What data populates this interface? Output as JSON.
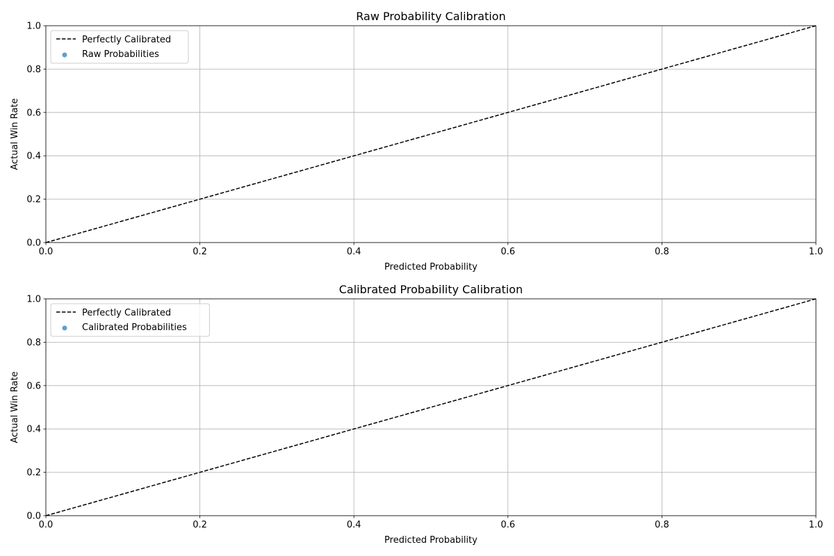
{
  "chart_data": [
    {
      "type": "line",
      "title": "Raw Probability Calibration",
      "xlabel": "Predicted Probability",
      "ylabel": "Actual Win Rate",
      "xlim": [
        0,
        1
      ],
      "ylim": [
        0,
        1
      ],
      "grid": true,
      "xticks": [
        "0.0",
        "0.2",
        "0.4",
        "0.6",
        "0.8",
        "1.0"
      ],
      "yticks": [
        "0.0",
        "0.2",
        "0.4",
        "0.6",
        "0.8",
        "1.0"
      ],
      "legend_position": "top-left",
      "series": [
        {
          "name": "Perfectly Calibrated",
          "kind": "line",
          "style": "dashed",
          "color": "#000000",
          "x": [
            0,
            1
          ],
          "y": [
            0,
            1
          ]
        },
        {
          "name": "Raw Probabilities",
          "kind": "scatter",
          "color": "#1f77b4",
          "x": [],
          "y": []
        }
      ]
    },
    {
      "type": "line",
      "title": "Calibrated Probability Calibration",
      "xlabel": "Predicted Probability",
      "ylabel": "Actual Win Rate",
      "xlim": [
        0,
        1
      ],
      "ylim": [
        0,
        1
      ],
      "grid": true,
      "xticks": [
        "0.0",
        "0.2",
        "0.4",
        "0.6",
        "0.8",
        "1.0"
      ],
      "yticks": [
        "0.0",
        "0.2",
        "0.4",
        "0.6",
        "0.8",
        "1.0"
      ],
      "legend_position": "top-left",
      "series": [
        {
          "name": "Perfectly Calibrated",
          "kind": "line",
          "style": "dashed",
          "color": "#000000",
          "x": [
            0,
            1
          ],
          "y": [
            0,
            1
          ]
        },
        {
          "name": "Calibrated Probabilities",
          "kind": "scatter",
          "color": "#1f77b4",
          "x": [],
          "y": []
        }
      ]
    }
  ]
}
